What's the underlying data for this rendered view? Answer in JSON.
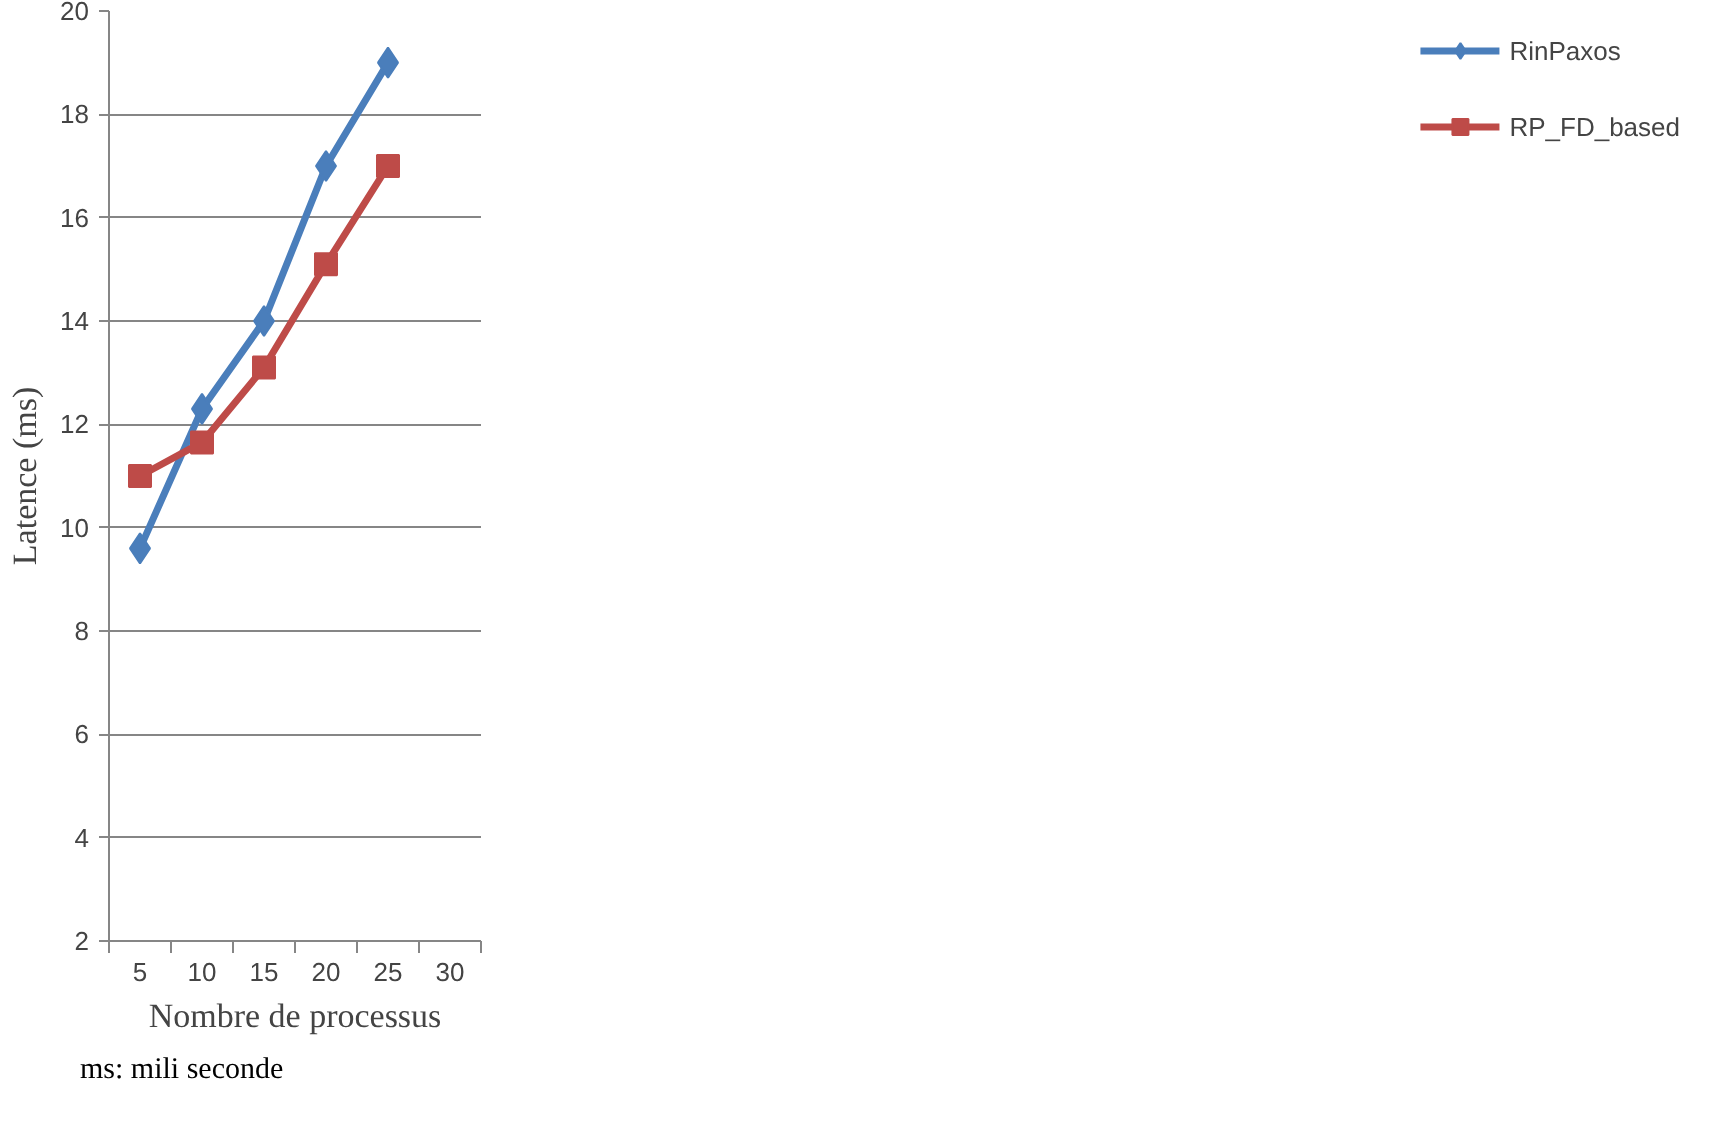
{
  "chart_data": {
    "type": "line",
    "xlabel": "Nombre de processus",
    "ylabel": "Latence (ms)",
    "categories": [
      "5",
      "10",
      "15",
      "20",
      "25",
      "30"
    ],
    "series": [
      {
        "name": "RinPaxos",
        "color": "#4a7ebb",
        "marker": "diamond",
        "values": [
          9.6,
          12.3,
          14.0,
          17.0,
          19.0,
          null
        ]
      },
      {
        "name": "RP_FD_based",
        "color": "#be4b48",
        "marker": "square",
        "values": [
          11.0,
          11.65,
          13.1,
          15.1,
          17.0,
          null
        ]
      }
    ],
    "ylim": [
      2,
      20
    ],
    "yticks": [
      2,
      4,
      6,
      8,
      10,
      12,
      14,
      16,
      18,
      20
    ],
    "grid": "y",
    "legend": "right",
    "annotations": [
      "ms: mili seconde"
    ]
  }
}
